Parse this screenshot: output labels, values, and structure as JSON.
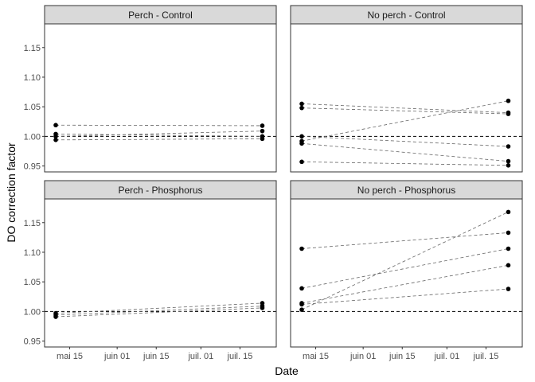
{
  "chart_data": {
    "type": "scatter",
    "xlabel": "Date",
    "ylabel": "DO correction factor",
    "x_ticks": [
      "mai 15",
      "juin 01",
      "juin 15",
      "juil. 01",
      "juil. 15"
    ],
    "x_tick_days": [
      14,
      31,
      45,
      61,
      75
    ],
    "y_ticks": [
      "0.95",
      "1.00",
      "1.05",
      "1.10",
      "1.15"
    ],
    "y_tick_values": [
      0.95,
      1.0,
      1.05,
      1.1,
      1.15
    ],
    "reference_line": 1.0,
    "x_dates": [
      "2019-05-10",
      "2019-07-23"
    ],
    "x_days": [
      9,
      83
    ],
    "xlim_days": [
      5,
      88
    ],
    "ylim": [
      0.94,
      1.19
    ],
    "grid": false,
    "line_style": "dashed",
    "panels": [
      {
        "title": "Perch - Control",
        "series": [
          {
            "values": [
              1.019,
              1.018
            ]
          },
          {
            "values": [
              1.004,
              1.0
            ]
          },
          {
            "values": [
              1.0,
              1.009
            ]
          },
          {
            "values": [
              0.994,
              0.996
            ]
          }
        ]
      },
      {
        "title": "No perch - Control",
        "series": [
          {
            "values": [
              1.055,
              1.04
            ]
          },
          {
            "values": [
              1.048,
              1.038
            ]
          },
          {
            "values": [
              1.0,
              0.983
            ]
          },
          {
            "values": [
              0.992,
              1.06
            ]
          },
          {
            "values": [
              0.988,
              0.958
            ]
          },
          {
            "values": [
              0.957,
              0.951
            ]
          }
        ]
      },
      {
        "title": "Perch - Phosphorus",
        "series": [
          {
            "values": [
              0.997,
              1.014
            ]
          },
          {
            "values": [
              0.994,
              1.009
            ]
          },
          {
            "values": [
              0.991,
              1.006
            ]
          }
        ]
      },
      {
        "title": "No perch - Phosphorus",
        "series": [
          {
            "values": [
              1.106,
              1.133
            ]
          },
          {
            "values": [
              1.039,
              1.106
            ]
          },
          {
            "values": [
              1.014,
              1.078
            ]
          },
          {
            "values": [
              1.012,
              1.038
            ]
          },
          {
            "values": [
              1.003,
              1.168
            ]
          }
        ]
      }
    ]
  }
}
